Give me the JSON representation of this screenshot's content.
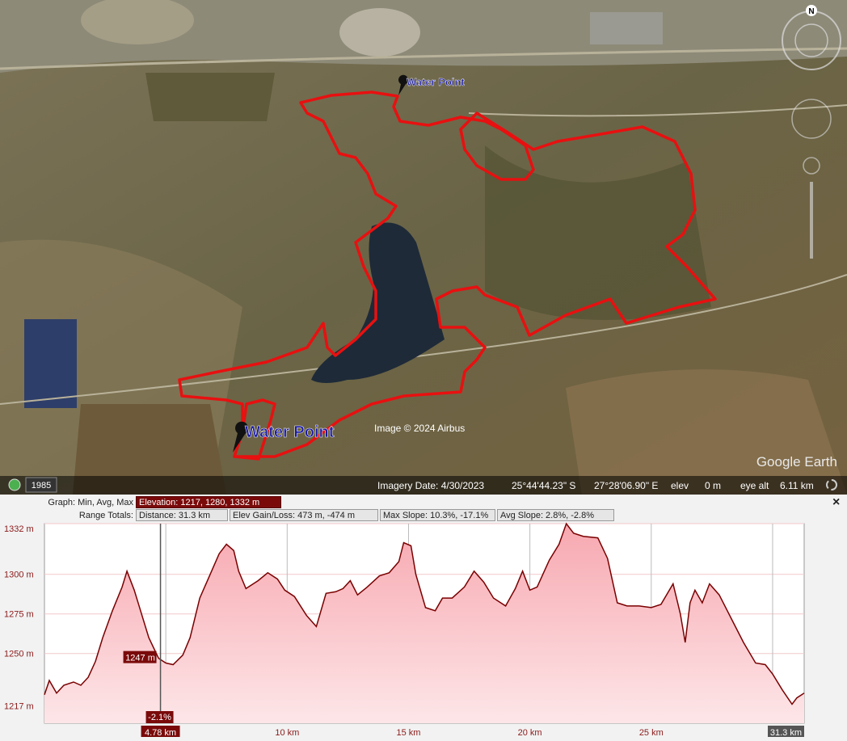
{
  "map": {
    "placemarks": [
      "Water Point",
      "Water Point"
    ],
    "attribution": "Image © 2024 Airbus",
    "brand": "Google Earth",
    "compass": "N",
    "historical_year": "1985"
  },
  "status_bar": {
    "imagery_date": "Imagery Date: 4/30/2023",
    "latitude": "25°44'44.23\" S",
    "longitude": "27°28'06.90\" E",
    "elev_label": "elev",
    "elev": "0 m",
    "eye_alt_label": "eye alt",
    "eye_alt": "6.11 km"
  },
  "profile_header": {
    "graph_label": "Graph: Min, Avg, Max",
    "elevation": "Elevation: 1217, 1280, 1332 m",
    "range_label": "Range Totals:",
    "distance": "Distance: 31.3 km",
    "elev_gain_loss": "Elev Gain/Loss: 473 m, -474 m",
    "max_slope": "Max Slope: 10.3%, -17.1%",
    "avg_slope": "Avg Slope: 2.8%, -2.8%",
    "close": "×"
  },
  "chart_data": {
    "type": "area",
    "x": [
      0,
      0.2,
      0.5,
      0.8,
      1.2,
      1.5,
      1.8,
      2.1,
      2.4,
      2.8,
      3.2,
      3.4,
      3.7,
      4.0,
      4.3,
      4.7,
      5.0,
      5.3,
      5.7,
      6.0,
      6.4,
      6.8,
      7.2,
      7.5,
      7.8,
      8.0,
      8.3,
      8.8,
      9.2,
      9.6,
      9.9,
      10.3,
      10.8,
      11.2,
      11.6,
      12.0,
      12.3,
      12.6,
      12.9,
      13.3,
      13.8,
      14.2,
      14.6,
      14.8,
      15.1,
      15.3,
      15.7,
      16.1,
      16.4,
      16.8,
      17.3,
      17.7,
      18.1,
      18.5,
      19.0,
      19.4,
      19.7,
      20.0,
      20.3,
      20.8,
      21.2,
      21.5,
      21.8,
      22.2,
      22.8,
      23.2,
      23.6,
      24.0,
      24.5,
      25.0,
      25.4,
      25.9,
      26.2,
      26.4,
      26.6,
      26.8,
      27.1,
      27.4,
      27.8,
      28.3,
      28.8,
      29.3,
      29.7,
      30.0,
      30.4,
      30.8,
      31.0,
      31.3
    ],
    "values": [
      1224,
      1233,
      1225,
      1230,
      1232,
      1230,
      1235,
      1245,
      1260,
      1277,
      1292,
      1302,
      1290,
      1275,
      1260,
      1247,
      1244,
      1243,
      1249,
      1260,
      1285,
      1299,
      1313,
      1319,
      1315,
      1302,
      1291,
      1296,
      1301,
      1297,
      1290,
      1286,
      1274,
      1267,
      1288,
      1289,
      1291,
      1296,
      1287,
      1292,
      1299,
      1301,
      1308,
      1320,
      1318,
      1300,
      1279,
      1277,
      1285,
      1285,
      1292,
      1302,
      1295,
      1285,
      1280,
      1291,
      1302,
      1290,
      1292,
      1309,
      1319,
      1332,
      1326,
      1324,
      1323,
      1310,
      1282,
      1280,
      1280,
      1279,
      1281,
      1294,
      1275,
      1257,
      1282,
      1290,
      1282,
      1294,
      1287,
      1272,
      1257,
      1244,
      1243,
      1237,
      1227,
      1218,
      1222,
      1225
    ],
    "color": "#7a0000",
    "xlim": [
      0,
      31.3
    ],
    "ylim": [
      1206,
      1332
    ],
    "yticks": [
      {
        "value": 1332,
        "label": "1332 m"
      },
      {
        "value": 1300,
        "label": "1300 m"
      },
      {
        "value": 1275,
        "label": "1275 m"
      },
      {
        "value": 1250,
        "label": "1250 m"
      },
      {
        "value": 1217,
        "label": "1217 m"
      }
    ],
    "xticks": [
      {
        "value": 10,
        "label": "10 km"
      },
      {
        "value": 15,
        "label": "15 km"
      },
      {
        "value": 20,
        "label": "20 km"
      },
      {
        "value": 25,
        "label": "25 km"
      },
      {
        "value": 31.3,
        "label": "31.3 km"
      }
    ],
    "xgrid": [
      5,
      10,
      15,
      20,
      25,
      30
    ],
    "grid": true,
    "cursor": {
      "x": 4.78,
      "x_label": "4.78 km",
      "y": 1247,
      "y_label": "1247 m",
      "slope": -2.1,
      "slope_label": "-2.1%"
    }
  }
}
